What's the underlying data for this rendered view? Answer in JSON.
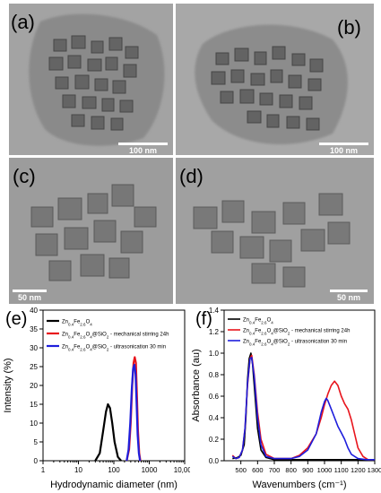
{
  "panels": {
    "a": {
      "label": "(a)",
      "scale": "100 nm"
    },
    "b": {
      "label": "(b)",
      "scale": "100 nm"
    },
    "c": {
      "label": "(c)",
      "scale": "50 nm"
    },
    "d": {
      "label": "(d)",
      "scale": "50 nm"
    },
    "e": {
      "label": "(e)"
    },
    "f": {
      "label": "(f)"
    }
  },
  "colors": {
    "black": "#000000",
    "red": "#e8141c",
    "blue": "#1e1edc"
  },
  "chart_data": [
    {
      "type": "line",
      "xlabel": "Hydrodynamic diameter (nm)",
      "ylabel": "Intensity (%)",
      "xscale": "log",
      "xlim": [
        1,
        10000
      ],
      "ylim": [
        0,
        40
      ],
      "xticks": [
        "1",
        "10",
        "100",
        "1000",
        "10,000"
      ],
      "yticks": [
        "0",
        "5",
        "10",
        "15",
        "20",
        "25",
        "30",
        "35",
        "40"
      ],
      "legend": "top-left",
      "series": [
        {
          "name": "Zn0.4Fe2.6O4",
          "color": "#000000",
          "x": [
            30,
            40,
            50,
            60,
            68,
            78,
            90,
            105,
            130,
            160
          ],
          "y": [
            0,
            2,
            8,
            13,
            15,
            14,
            10,
            5,
            1,
            0
          ]
        },
        {
          "name": "Zn0.4Fe2.6O4@SiO2 - mechanical stirring 24h",
          "color": "#e8141c",
          "x": [
            230,
            270,
            300,
            330,
            360,
            390,
            420,
            450,
            480,
            520,
            560
          ],
          "y": [
            0,
            3,
            10,
            20,
            26,
            27.5,
            26,
            17,
            8,
            2,
            0
          ]
        },
        {
          "name": "Zn0.4Fe2.6O4@SiO2 - ultrasonication 30 min",
          "color": "#1e1edc",
          "x": [
            230,
            260,
            290,
            320,
            350,
            380,
            410,
            440,
            470,
            510,
            550
          ],
          "y": [
            0,
            3,
            10,
            19,
            24.5,
            25.5,
            23,
            15,
            7,
            2,
            0
          ]
        }
      ]
    },
    {
      "type": "line",
      "xlabel": "Wavenumbers (cm⁻¹)",
      "ylabel": "Absorbance (au)",
      "xlim": [
        400,
        1300
      ],
      "ylim": [
        0,
        1.4
      ],
      "xticks": [
        "500",
        "600",
        "700",
        "800",
        "900",
        "1000",
        "1100",
        "1200",
        "1300"
      ],
      "yticks": [
        "0.0",
        "0.2",
        "0.4",
        "0.6",
        "0.8",
        "1.0",
        "1.2",
        "1.4"
      ],
      "legend": "top-right",
      "series": [
        {
          "name": "Zn0.4Fe2.6O4",
          "color": "#000000",
          "x": [
            450,
            480,
            500,
            520,
            530,
            540,
            550,
            560,
            570,
            580,
            600,
            620,
            650,
            700,
            800,
            1000,
            1300
          ],
          "y": [
            0.02,
            0.03,
            0.05,
            0.15,
            0.4,
            0.75,
            0.95,
            1.0,
            0.9,
            0.7,
            0.3,
            0.1,
            0.03,
            0.01,
            0.01,
            0.01,
            0.01
          ]
        },
        {
          "name": "Zn0.4Fe2.6O4@SiO2 - mechanical stirring 24h",
          "color": "#e8141c",
          "x": [
            450,
            470,
            490,
            510,
            525,
            540,
            555,
            565,
            580,
            600,
            620,
            650,
            700,
            750,
            800,
            850,
            900,
            950,
            980,
            1000,
            1020,
            1040,
            1060,
            1080,
            1100,
            1120,
            1140,
            1160,
            1180,
            1200,
            1230,
            1260,
            1300
          ],
          "y": [
            0.05,
            0.02,
            0.03,
            0.1,
            0.3,
            0.7,
            0.95,
            0.98,
            0.8,
            0.45,
            0.2,
            0.06,
            0.02,
            0.02,
            0.02,
            0.05,
            0.12,
            0.25,
            0.4,
            0.52,
            0.62,
            0.7,
            0.74,
            0.7,
            0.6,
            0.53,
            0.48,
            0.38,
            0.25,
            0.12,
            0.04,
            0.01,
            0.01
          ]
        },
        {
          "name": "Zn0.4Fe2.6O4@SiO2 - ultrasonication 30 min",
          "color": "#1e1edc",
          "x": [
            450,
            470,
            490,
            510,
            525,
            540,
            555,
            565,
            580,
            600,
            620,
            650,
            700,
            750,
            800,
            850,
            900,
            950,
            980,
            1000,
            1010,
            1020,
            1040,
            1060,
            1080,
            1100,
            1120,
            1140,
            1160,
            1200,
            1250,
            1300
          ],
          "y": [
            0.04,
            0.02,
            0.03,
            0.1,
            0.3,
            0.72,
            0.95,
            0.96,
            0.78,
            0.4,
            0.15,
            0.04,
            0.02,
            0.02,
            0.02,
            0.04,
            0.1,
            0.25,
            0.45,
            0.55,
            0.58,
            0.56,
            0.48,
            0.4,
            0.32,
            0.26,
            0.2,
            0.12,
            0.06,
            0.02,
            0.01,
            0.01
          ]
        }
      ]
    }
  ]
}
